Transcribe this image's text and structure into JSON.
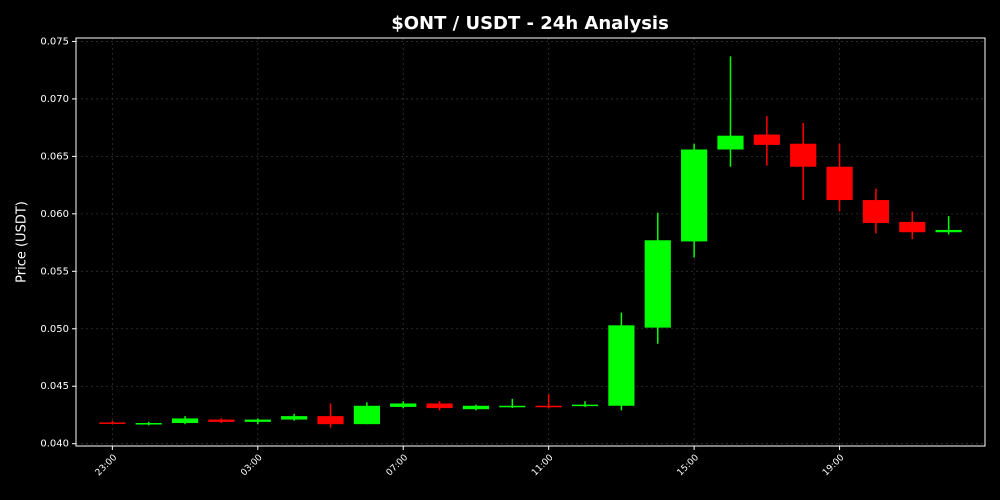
{
  "chart_data": {
    "type": "candlestick",
    "title": "$ONT / USDT - 24h Analysis",
    "y_label": "Price (USDT)",
    "categories": [
      "23:00",
      null,
      null,
      null,
      "03:00",
      null,
      null,
      null,
      "07:00",
      null,
      null,
      null,
      "11:00",
      null,
      null,
      null,
      "15:00",
      null,
      null,
      null,
      "19:00",
      null,
      null,
      null
    ],
    "open": [
      0.04185,
      0.04175,
      0.0418,
      0.0421,
      0.0419,
      0.0421,
      0.0424,
      0.0417,
      0.0432,
      0.0435,
      0.043,
      0.0432,
      0.0433,
      0.0433,
      0.0433,
      0.0501,
      0.0576,
      0.0656,
      0.0669,
      0.0661,
      0.0641,
      0.0612,
      0.0593,
      0.0584
    ],
    "high": [
      0.042,
      0.0419,
      0.0424,
      0.0422,
      0.0422,
      0.0426,
      0.0435,
      0.0436,
      0.0437,
      0.0437,
      0.0434,
      0.0439,
      0.0443,
      0.0437,
      0.0514,
      0.0601,
      0.0661,
      0.0737,
      0.0685,
      0.0679,
      0.0661,
      0.0622,
      0.0602,
      0.0598
    ],
    "low": [
      0.0417,
      0.0416,
      0.0417,
      0.0418,
      0.0417,
      0.042,
      0.0414,
      0.0417,
      0.0431,
      0.0429,
      0.0429,
      0.0431,
      0.0431,
      0.0432,
      0.0429,
      0.0487,
      0.0562,
      0.0641,
      0.0642,
      0.0612,
      0.0602,
      0.0583,
      0.0578,
      0.0582
    ],
    "close": [
      0.04178,
      0.0418,
      0.0422,
      0.0419,
      0.0421,
      0.0424,
      0.0417,
      0.0433,
      0.0435,
      0.0431,
      0.0433,
      0.0433,
      0.0432,
      0.0434,
      0.0503,
      0.0577,
      0.0656,
      0.0668,
      0.066,
      0.0641,
      0.0612,
      0.0592,
      0.0584,
      0.0586
    ],
    "up_color": "#00ff00",
    "down_color": "#ff0000",
    "ylim": [
      0.0398,
      0.0753
    ],
    "yticks": [
      {
        "value": 0.04,
        "label": "0.040"
      },
      0.045,
      {
        "value": 0.05,
        "label": "0.050"
      },
      0.055,
      {
        "value": 0.06,
        "label": "0.060"
      },
      0.065,
      {
        "value": 0.07,
        "label": "0.070"
      },
      0.075
    ],
    "grid": true
  }
}
